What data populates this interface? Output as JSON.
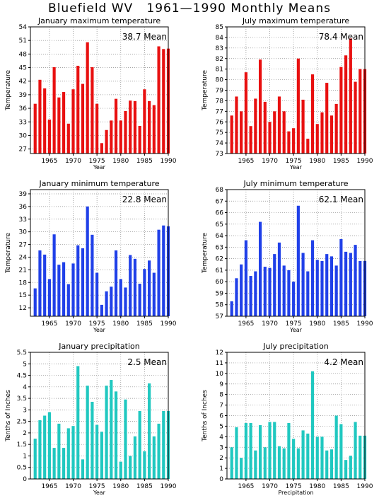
{
  "page_title": "Bluefield WV   1961—1990 Monthly Means",
  "chart_data": [
    {
      "type": "bar",
      "title": "January maximum temperature",
      "annotation": "38.7 Mean",
      "xlabel": "Year",
      "ylabel": "Temperature",
      "color": "#e81010",
      "ylim": [
        26,
        54
      ],
      "yticks": [
        27,
        30,
        33,
        36,
        39,
        42,
        45,
        48,
        51,
        54
      ],
      "xticks": [
        1965,
        1970,
        1975,
        1980,
        1985,
        1990
      ],
      "x": [
        1962,
        1963,
        1964,
        1965,
        1966,
        1967,
        1968,
        1969,
        1970,
        1971,
        1972,
        1973,
        1974,
        1975,
        1976,
        1977,
        1978,
        1979,
        1980,
        1981,
        1982,
        1983,
        1984,
        1985,
        1986,
        1987,
        1988,
        1989,
        1990
      ],
      "values": [
        37.0,
        42.3,
        40.4,
        33.5,
        45.1,
        38.4,
        39.6,
        32.6,
        40.2,
        45.4,
        41.4,
        50.6,
        45.1,
        37.0,
        28.3,
        31.2,
        33.3,
        38.1,
        33.3,
        35.4,
        37.7,
        37.6,
        32.1,
        40.2,
        37.6,
        36.7,
        49.7,
        49.1,
        49.2
      ]
    },
    {
      "type": "bar",
      "title": "July maximum temperature",
      "annotation": "78.4 Mean",
      "xlabel": "Year",
      "ylabel": "Temperature",
      "color": "#e81010",
      "ylim": [
        73,
        85
      ],
      "yticks": [
        73,
        74,
        75,
        76,
        77,
        78,
        79,
        80,
        81,
        82,
        83,
        84,
        85
      ],
      "xticks": [
        1965,
        1970,
        1975,
        1980,
        1985,
        1990
      ],
      "x": [
        1962,
        1963,
        1964,
        1965,
        1966,
        1967,
        1968,
        1969,
        1970,
        1971,
        1972,
        1973,
        1974,
        1975,
        1976,
        1977,
        1978,
        1979,
        1980,
        1981,
        1982,
        1983,
        1984,
        1985,
        1986,
        1987,
        1988,
        1989,
        1990
      ],
      "values": [
        76.6,
        78.4,
        77.0,
        80.7,
        75.6,
        78.2,
        81.9,
        77.9,
        76.0,
        77.0,
        78.4,
        77.0,
        75.1,
        75.4,
        82.0,
        78.1,
        74.4,
        80.5,
        75.8,
        76.9,
        79.7,
        76.6,
        77.7,
        81.2,
        82.3,
        83.9,
        79.8,
        81.0,
        81.0
      ]
    },
    {
      "type": "bar",
      "title": "January minimum temperature",
      "annotation": "22.8 Mean",
      "xlabel": "Year",
      "ylabel": "Temperature",
      "color": "#2040e8",
      "ylim": [
        10,
        40
      ],
      "yticks": [
        12,
        15,
        18,
        21,
        24,
        27,
        30,
        33,
        36,
        39
      ],
      "xticks": [
        1965,
        1970,
        1975,
        1980,
        1985,
        1990
      ],
      "x": [
        1962,
        1963,
        1964,
        1965,
        1966,
        1967,
        1968,
        1969,
        1970,
        1971,
        1972,
        1973,
        1974,
        1975,
        1976,
        1977,
        1978,
        1979,
        1980,
        1981,
        1982,
        1983,
        1984,
        1985,
        1986,
        1987,
        1988,
        1989,
        1990
      ],
      "values": [
        16.6,
        25.6,
        24.6,
        18.8,
        29.4,
        22.2,
        22.8,
        17.6,
        22.5,
        26.8,
        26.1,
        36.0,
        29.3,
        20.3,
        12.7,
        15.9,
        17.0,
        25.6,
        18.8,
        16.8,
        24.5,
        23.6,
        17.7,
        21.2,
        23.2,
        20.3,
        30.5,
        31.5,
        31.3
      ]
    },
    {
      "type": "bar",
      "title": "July minimum temperature",
      "annotation": "62.1 Mean",
      "xlabel": "Year",
      "ylabel": "Temperature",
      "color": "#2040e8",
      "ylim": [
        57,
        68
      ],
      "yticks": [
        57,
        58,
        59,
        60,
        61,
        62,
        63,
        64,
        65,
        66,
        67,
        68
      ],
      "xticks": [
        1965,
        1970,
        1975,
        1980,
        1985,
        1990
      ],
      "x": [
        1962,
        1963,
        1964,
        1965,
        1966,
        1967,
        1968,
        1969,
        1970,
        1971,
        1972,
        1973,
        1974,
        1975,
        1976,
        1977,
        1978,
        1979,
        1980,
        1981,
        1982,
        1983,
        1984,
        1985,
        1986,
        1987,
        1988,
        1989,
        1990
      ],
      "values": [
        58.3,
        60.3,
        61.5,
        63.6,
        60.5,
        60.9,
        65.2,
        61.3,
        61.2,
        62.4,
        63.4,
        61.4,
        61.0,
        60.0,
        66.6,
        62.5,
        60.9,
        63.6,
        61.9,
        61.8,
        62.4,
        62.2,
        61.4,
        63.7,
        62.6,
        62.5,
        63.2,
        61.8,
        61.8
      ]
    },
    {
      "type": "bar",
      "title": "January precipitation",
      "annotation": "2.5 Mean",
      "xlabel": "Year",
      "ylabel": "Tenths of Inches",
      "color": "#20c8c0",
      "ylim": [
        0,
        5.5
      ],
      "yticks": [
        0,
        0.5,
        1,
        1.5,
        2,
        2.5,
        3,
        3.5,
        4,
        4.5,
        5,
        5.5
      ],
      "xticks": [
        1965,
        1970,
        1975,
        1980,
        1985,
        1990
      ],
      "x": [
        1962,
        1963,
        1964,
        1965,
        1966,
        1967,
        1968,
        1969,
        1970,
        1971,
        1972,
        1973,
        1974,
        1975,
        1976,
        1977,
        1978,
        1979,
        1980,
        1981,
        1982,
        1983,
        1984,
        1985,
        1986,
        1987,
        1988,
        1989,
        1990
      ],
      "values": [
        1.75,
        2.55,
        2.75,
        2.9,
        1.35,
        2.4,
        1.35,
        2.2,
        2.3,
        4.9,
        0.85,
        4.05,
        3.35,
        2.35,
        2.05,
        4.05,
        4.3,
        3.8,
        0.75,
        3.45,
        1.0,
        1.85,
        2.95,
        1.2,
        4.15,
        1.85,
        2.4,
        2.95,
        2.95
      ]
    },
    {
      "type": "bar",
      "title": "July precipitation",
      "annotation": "4.2 Mean",
      "xlabel": "Precipitation",
      "ylabel": "Tenths of Inches",
      "color": "#20c8c0",
      "ylim": [
        0,
        12
      ],
      "yticks": [
        0,
        1,
        2,
        3,
        4,
        5,
        6,
        7,
        8,
        9,
        10,
        11,
        12
      ],
      "xticks": [
        1965,
        1970,
        1975,
        1980,
        1985,
        1990
      ],
      "x": [
        1962,
        1963,
        1964,
        1965,
        1966,
        1967,
        1968,
        1969,
        1970,
        1971,
        1972,
        1973,
        1974,
        1975,
        1976,
        1977,
        1978,
        1979,
        1980,
        1981,
        1982,
        1983,
        1984,
        1985,
        1986,
        1987,
        1988,
        1989,
        1990
      ],
      "values": [
        3.0,
        4.9,
        2.0,
        5.3,
        5.3,
        2.7,
        5.1,
        3.0,
        5.4,
        5.4,
        3.1,
        2.9,
        5.3,
        3.8,
        2.9,
        4.6,
        4.3,
        10.2,
        4.0,
        4.0,
        2.7,
        2.8,
        6.0,
        5.2,
        1.8,
        2.2,
        5.4,
        4.1,
        4.1
      ]
    }
  ]
}
